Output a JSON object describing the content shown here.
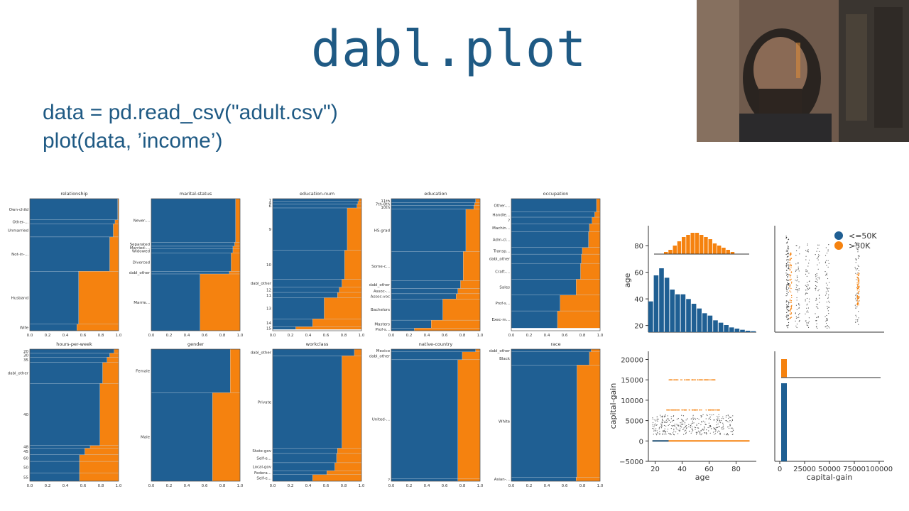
{
  "slide": {
    "title": "dabl.plot",
    "code_lines": [
      "data = pd.read_csv(\"adult.csv\")",
      "plot(data, ’income’)"
    ]
  },
  "webcam": {
    "description_icon": "presenter-video-icon"
  },
  "colors": {
    "blue": "#1f5f93",
    "orange": "#f5820f",
    "title": "#1f5a84"
  },
  "mosaic": {
    "x_ticks": [
      "0.0",
      "0.2",
      "0.4",
      "0.6",
      "0.8",
      "1.0"
    ],
    "panels": [
      {
        "title": "relationship",
        "categories": [
          {
            "label": "Own-child",
            "share": 0.16,
            "orange": 0.01
          },
          {
            "label": "Other-...",
            "share": 0.03,
            "orange": 0.04
          },
          {
            "label": "Unmarried",
            "share": 0.1,
            "orange": 0.06
          },
          {
            "label": "Not-in-...",
            "share": 0.26,
            "orange": 0.1
          },
          {
            "label": "Husband",
            "share": 0.4,
            "orange": 0.45
          },
          {
            "label": "Wife",
            "share": 0.05,
            "orange": 0.47
          }
        ]
      },
      {
        "title": "marital-status",
        "categories": [
          {
            "label": "Never-...",
            "share": 0.33,
            "orange": 0.05
          },
          {
            "label": "Separated",
            "share": 0.03,
            "orange": 0.06
          },
          {
            "label": "Married-...",
            "share": 0.02,
            "orange": 0.08
          },
          {
            "label": "Widowed",
            "share": 0.03,
            "orange": 0.08
          },
          {
            "label": "Divorced",
            "share": 0.14,
            "orange": 0.1
          },
          {
            "label": "dabl_other",
            "share": 0.02,
            "orange": 0.12
          },
          {
            "label": "Marrie...",
            "share": 0.43,
            "orange": 0.45
          }
        ]
      },
      {
        "title": "education-num",
        "categories": [
          {
            "label": "7",
            "share": 0.02,
            "orange": 0.03
          },
          {
            "label": "4",
            "share": 0.02,
            "orange": 0.04
          },
          {
            "label": "6",
            "share": 0.03,
            "orange": 0.05
          },
          {
            "label": "9",
            "share": 0.32,
            "orange": 0.16
          },
          {
            "label": "10",
            "share": 0.22,
            "orange": 0.19
          },
          {
            "label": "dabl_other",
            "share": 0.06,
            "orange": 0.22
          },
          {
            "label": "12",
            "share": 0.04,
            "orange": 0.25
          },
          {
            "label": "11",
            "share": 0.04,
            "orange": 0.27
          },
          {
            "label": "13",
            "share": 0.16,
            "orange": 0.42
          },
          {
            "label": "14",
            "share": 0.06,
            "orange": 0.55
          },
          {
            "label": "15",
            "share": 0.02,
            "orange": 0.74
          }
        ]
      },
      {
        "title": "education",
        "categories": [
          {
            "label": "11th",
            "share": 0.03,
            "orange": 0.05
          },
          {
            "label": "7th-8th",
            "share": 0.02,
            "orange": 0.06
          },
          {
            "label": "10th",
            "share": 0.03,
            "orange": 0.07
          },
          {
            "label": "HS-grad",
            "share": 0.32,
            "orange": 0.16
          },
          {
            "label": "Some-c...",
            "share": 0.22,
            "orange": 0.19
          },
          {
            "label": "dabl_other",
            "share": 0.06,
            "orange": 0.22
          },
          {
            "label": "Assoc-...",
            "share": 0.04,
            "orange": 0.25
          },
          {
            "label": "Assoc-voc",
            "share": 0.04,
            "orange": 0.27
          },
          {
            "label": "Bachelors",
            "share": 0.16,
            "orange": 0.42
          },
          {
            "label": "Masters",
            "share": 0.06,
            "orange": 0.55
          },
          {
            "label": "Prof-s...",
            "share": 0.02,
            "orange": 0.74
          }
        ]
      },
      {
        "title": "occupation",
        "categories": [
          {
            "label": "Other-...",
            "share": 0.1,
            "orange": 0.04
          },
          {
            "label": "Handle...",
            "share": 0.04,
            "orange": 0.06
          },
          {
            "label": "?",
            "share": 0.05,
            "orange": 0.09
          },
          {
            "label": "Machin...",
            "share": 0.06,
            "orange": 0.12
          },
          {
            "label": "Adm-cl...",
            "share": 0.12,
            "orange": 0.13
          },
          {
            "label": "Transp...",
            "share": 0.05,
            "orange": 0.2
          },
          {
            "label": "dabl_other",
            "share": 0.07,
            "orange": 0.21
          },
          {
            "label": "Craft-...",
            "share": 0.12,
            "orange": 0.22
          },
          {
            "label": "Sales",
            "share": 0.12,
            "orange": 0.27
          },
          {
            "label": "Prof-s...",
            "share": 0.12,
            "orange": 0.45
          },
          {
            "label": "Exec-m...",
            "share": 0.13,
            "orange": 0.48
          }
        ]
      },
      {
        "title": "hours-per-week",
        "categories": [
          {
            "label": "20",
            "share": 0.03,
            "orange": 0.05
          },
          {
            "label": "30",
            "share": 0.03,
            "orange": 0.1
          },
          {
            "label": "35",
            "share": 0.04,
            "orange": 0.13
          },
          {
            "label": "dabl_other",
            "share": 0.16,
            "orange": 0.18
          },
          {
            "label": "40",
            "share": 0.47,
            "orange": 0.21
          },
          {
            "label": "48",
            "share": 0.02,
            "orange": 0.32
          },
          {
            "label": "45",
            "share": 0.05,
            "orange": 0.38
          },
          {
            "label": "60",
            "share": 0.05,
            "orange": 0.44
          },
          {
            "label": "50",
            "share": 0.09,
            "orange": 0.44
          },
          {
            "label": "55",
            "share": 0.06,
            "orange": 0.44
          }
        ]
      },
      {
        "title": "gender",
        "categories": [
          {
            "label": "Female",
            "share": 0.33,
            "orange": 0.11
          },
          {
            "label": "Male",
            "share": 0.67,
            "orange": 0.31
          }
        ]
      },
      {
        "title": "workclass",
        "categories": [
          {
            "label": "dabl_other",
            "share": 0.05,
            "orange": 0.08
          },
          {
            "label": "Private",
            "share": 0.7,
            "orange": 0.22
          },
          {
            "label": "State-gov",
            "share": 0.04,
            "orange": 0.27
          },
          {
            "label": "Self-e...",
            "share": 0.07,
            "orange": 0.28
          },
          {
            "label": "Local-gov",
            "share": 0.06,
            "orange": 0.3
          },
          {
            "label": "Federa...",
            "share": 0.03,
            "orange": 0.39
          },
          {
            "label": "Self-e...",
            "share": 0.05,
            "orange": 0.55
          }
        ]
      },
      {
        "title": "native-country",
        "categories": [
          {
            "label": "Mexico",
            "share": 0.02,
            "orange": 0.05
          },
          {
            "label": "dabl_other",
            "share": 0.06,
            "orange": 0.2
          },
          {
            "label": "United-...",
            "share": 0.9,
            "orange": 0.25
          },
          {
            "label": "?",
            "share": 0.02,
            "orange": 0.25
          }
        ]
      },
      {
        "title": "race",
        "categories": [
          {
            "label": "dabl_other",
            "share": 0.02,
            "orange": 0.1
          },
          {
            "label": "Black",
            "share": 0.1,
            "orange": 0.12
          },
          {
            "label": "White",
            "share": 0.85,
            "orange": 0.26
          },
          {
            "label": "Asian-...",
            "share": 0.03,
            "orange": 0.27
          }
        ]
      }
    ]
  },
  "pairplot": {
    "legend": [
      {
        "label": "<=50K",
        "color": "#1f5f93"
      },
      {
        "label": ">50K",
        "color": "#f5820f"
      }
    ],
    "age_ticks": [
      "20",
      "40",
      "60",
      "80"
    ],
    "age_y_ticks": [
      "20",
      "40",
      "60",
      "80"
    ],
    "gain_y_ticks": [
      "20000",
      "15000",
      "10000",
      "5000",
      "0",
      "−5000"
    ],
    "gain_x_ticks": [
      "0",
      "25000",
      "50000",
      "75000",
      "100000"
    ],
    "xlabel_left": "age",
    "xlabel_right": "capital-gain",
    "ylabel_top": "age",
    "ylabel_bottom": "capital-gain",
    "age_hist_blue": [
      13,
      24,
      27,
      23,
      18,
      16,
      16,
      14,
      12,
      10,
      8,
      7,
      5,
      4,
      3,
      2,
      1.5,
      1,
      0.6,
      0.4
    ],
    "age_hist_blue_ymax": 30,
    "age_hist_orange": [
      1,
      2,
      4,
      6,
      8,
      9,
      10,
      10,
      9,
      8,
      7,
      5,
      4,
      3,
      2,
      1
    ],
    "gain_hist_blue_height": 1
  }
}
